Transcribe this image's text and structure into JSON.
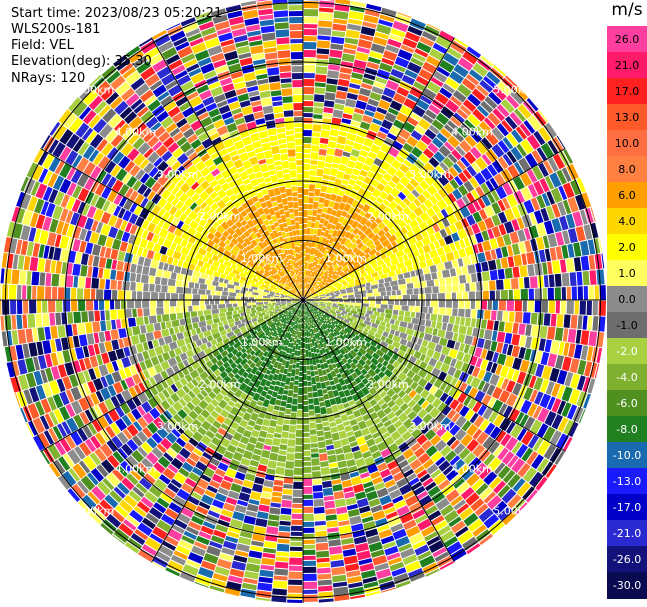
{
  "info": {
    "start_time": "Start time: 2023/08/23 05:20:21",
    "instrument": "WLS200s-181",
    "field": "Field: VEL",
    "elevation": "Elevation(deg): 35.30",
    "nrays": "NRays: 120"
  },
  "range_rings": [
    "1.00km",
    "2.00km",
    "3.00km",
    "4.00km",
    "5.00km"
  ],
  "colorbar": {
    "units": "m/s",
    "labels": [
      "26.0",
      "21.0",
      "17.0",
      "13.0",
      "10.0",
      "8.0",
      "6.0",
      "4.0",
      "2.0",
      "1.0",
      "0.0",
      "-1.0",
      "-2.0",
      "-4.0",
      "-6.0",
      "-8.0",
      "-10.0",
      "-13.0",
      "-17.0",
      "-21.0",
      "-26.0",
      "-30.0"
    ],
    "colors": [
      "#ff3fa0",
      "#ff1a6a",
      "#ff2020",
      "#ff5a2a",
      "#ff6e40",
      "#ff8040",
      "#ffa000",
      "#ffd700",
      "#ffff00",
      "#ffff60",
      "#8c8c8c",
      "#6e6e6e",
      "#a8d040",
      "#80b030",
      "#509020",
      "#208020",
      "#1a6ab0",
      "#1a1aff",
      "#0000c8",
      "#2a2ad0",
      "#12127a",
      "#0a0a50"
    ]
  }
}
